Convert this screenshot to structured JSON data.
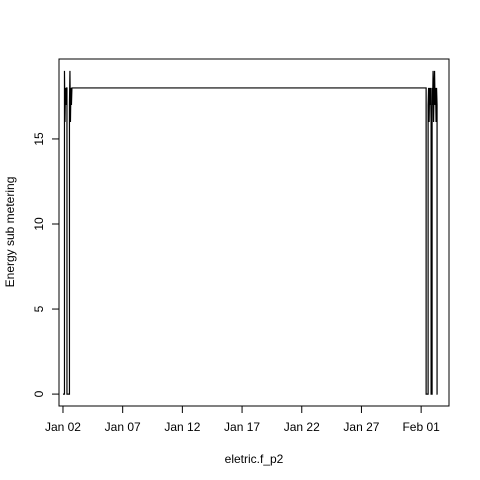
{
  "chart_data": {
    "type": "line",
    "title": "",
    "xlabel": "eletric.f_p2",
    "ylabel": "Energy sub metering",
    "x_axis_type": "date",
    "x_ticks": [
      {
        "date": "2007-01-02",
        "label": "Jan 02"
      },
      {
        "date": "2007-01-07",
        "label": "Jan 07"
      },
      {
        "date": "2007-01-12",
        "label": "Jan 12"
      },
      {
        "date": "2007-01-17",
        "label": "Jan 17"
      },
      {
        "date": "2007-01-22",
        "label": "Jan 22"
      },
      {
        "date": "2007-01-27",
        "label": "Jan 27"
      },
      {
        "date": "2007-02-01",
        "label": "Feb 01"
      }
    ],
    "xlim": [
      "2007-01-01T16:00",
      "2007-02-03T08:00"
    ],
    "ylim": [
      -0.7,
      19.7
    ],
    "y_ticks": [
      0,
      5,
      10,
      15
    ],
    "grid": false,
    "legend": "none",
    "line_color": "#000000",
    "series": [
      {
        "points": [
          [
            "2007-01-02T00:00",
            0
          ],
          [
            "2007-01-02T03:00",
            0
          ],
          [
            "2007-01-02T03:00",
            19
          ],
          [
            "2007-01-02T04:00",
            16
          ],
          [
            "2007-01-02T05:00",
            18
          ],
          [
            "2007-01-02T06:00",
            17
          ],
          [
            "2007-01-02T07:00",
            18
          ],
          [
            "2007-01-02T08:00",
            18
          ],
          [
            "2007-01-02T08:00",
            0
          ],
          [
            "2007-01-02T13:00",
            0
          ],
          [
            "2007-01-02T13:00",
            17
          ],
          [
            "2007-01-02T14:00",
            19
          ],
          [
            "2007-01-02T15:00",
            16
          ],
          [
            "2007-01-02T16:00",
            18
          ],
          [
            "2007-01-02T17:00",
            17
          ],
          [
            "2007-01-02T18:00",
            18
          ],
          [
            "2007-02-01T10:00",
            18
          ],
          [
            "2007-02-01T10:00",
            0
          ],
          [
            "2007-02-01T14:00",
            0
          ],
          [
            "2007-02-01T14:00",
            17
          ],
          [
            "2007-02-01T15:00",
            18
          ],
          [
            "2007-02-01T16:00",
            16
          ],
          [
            "2007-02-01T17:00",
            18
          ],
          [
            "2007-02-01T18:00",
            17
          ],
          [
            "2007-02-01T19:00",
            18
          ],
          [
            "2007-02-01T20:00",
            16
          ],
          [
            "2007-02-01T20:00",
            0
          ],
          [
            "2007-02-01T22:00",
            0
          ],
          [
            "2007-02-01T22:00",
            18
          ],
          [
            "2007-02-01T23:00",
            17
          ],
          [
            "2007-02-02T00:00",
            19
          ],
          [
            "2007-02-02T01:00",
            16
          ],
          [
            "2007-02-02T02:00",
            18
          ],
          [
            "2007-02-02T03:00",
            19
          ],
          [
            "2007-02-02T04:00",
            17
          ],
          [
            "2007-02-02T05:00",
            18
          ],
          [
            "2007-02-02T06:00",
            16
          ],
          [
            "2007-02-02T07:00",
            18
          ],
          [
            "2007-02-02T08:00",
            17
          ],
          [
            "2007-02-02T08:00",
            0
          ],
          [
            "2007-02-02T09:00",
            0
          ]
        ]
      }
    ]
  }
}
